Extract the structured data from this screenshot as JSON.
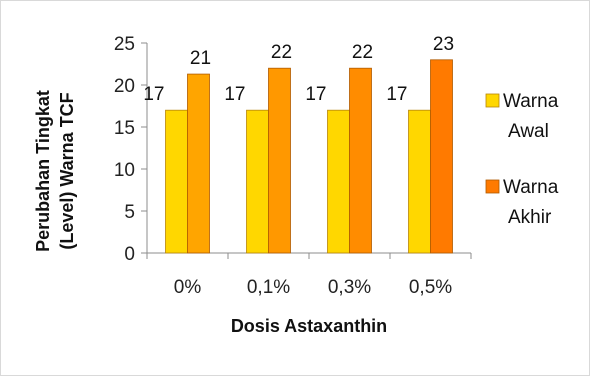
{
  "chart_data": {
    "type": "bar",
    "title": "",
    "categories": [
      "0%",
      "0,1%",
      "0,3%",
      "0,5%"
    ],
    "series": [
      {
        "name_lines": [
          "Warna",
          "Awal"
        ],
        "values": [
          17,
          17,
          17,
          17
        ],
        "labels": [
          "17",
          "17",
          "17",
          "17"
        ],
        "color": "#FFD700",
        "stroke": "#B8860B"
      },
      {
        "name_lines": [
          "Warna",
          "Akhir"
        ],
        "values": [
          21.3,
          22,
          22,
          23
        ],
        "labels": [
          "21",
          "22",
          "22",
          "23"
        ],
        "color_ramp": [
          "#FFA500",
          "#FF9800",
          "#FF8C00",
          "#FF7A00"
        ],
        "stroke": "#B05A00"
      }
    ],
    "ylim": [
      0,
      25
    ],
    "yticks": [
      "0",
      "5",
      "10",
      "15",
      "20",
      "25"
    ],
    "ylabel_lines": [
      "Perubahan Tingkat",
      "(Level) Warna TCF"
    ],
    "xlabel": "Dosis Astaxanthin",
    "legend_position": "right",
    "grid": false
  }
}
